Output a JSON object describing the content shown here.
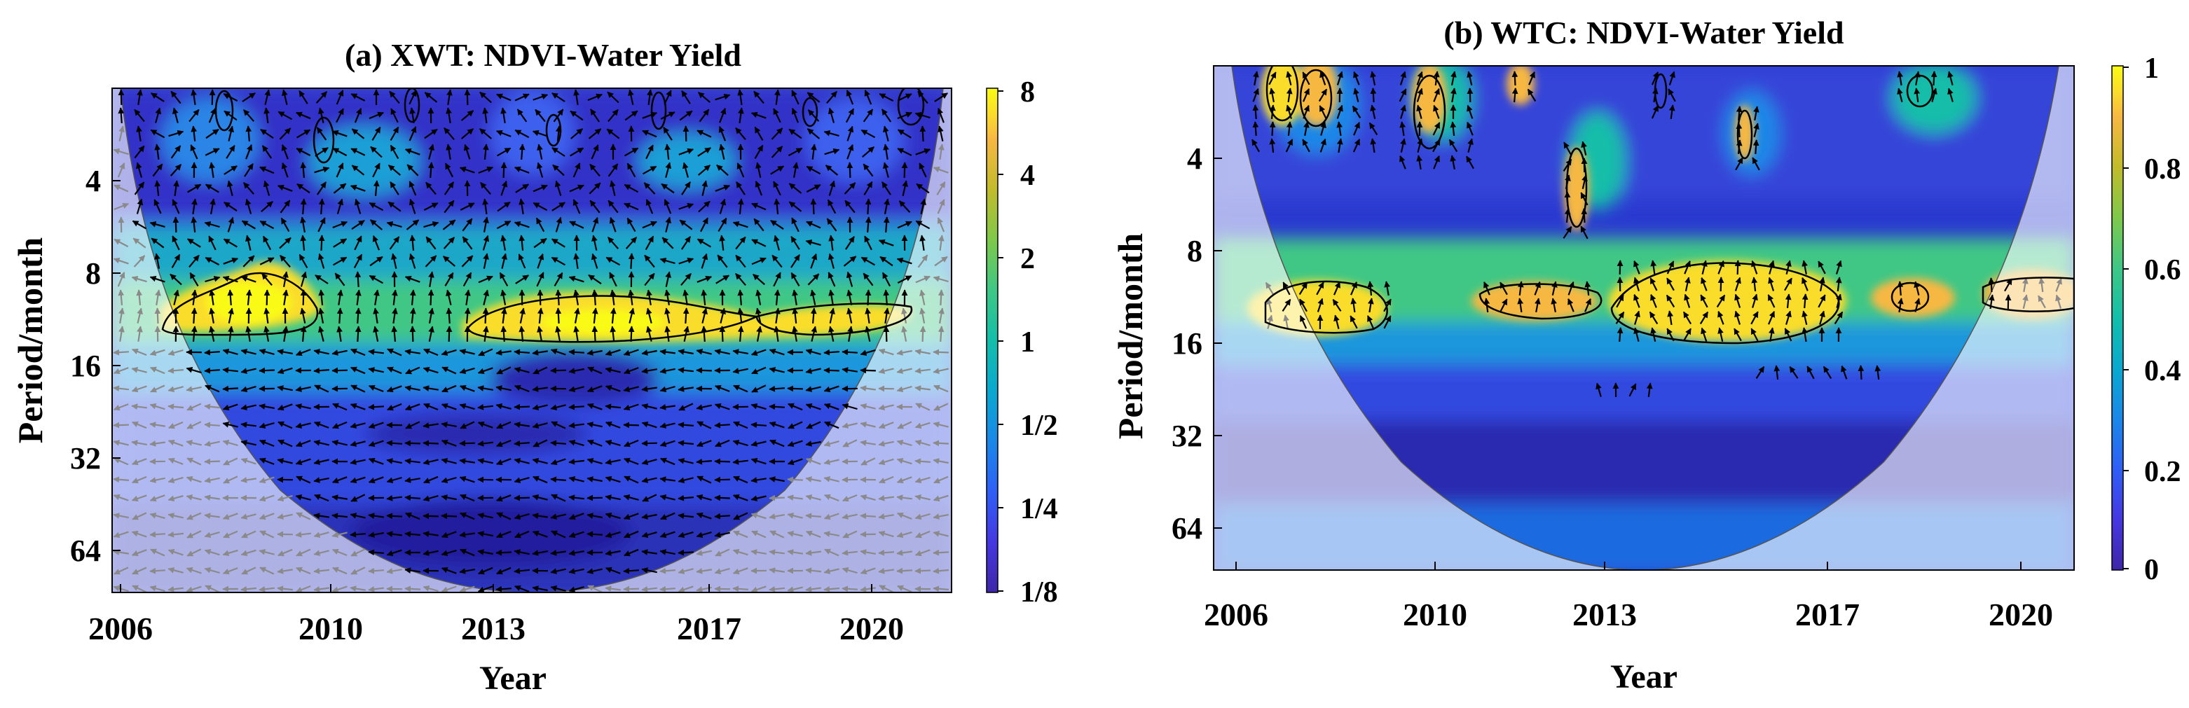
{
  "chart_data": [
    {
      "type": "heatmap",
      "title": "(a) XWT: NDVI-Water Yield",
      "xlabel": "Year",
      "ylabel": "Period/month",
      "x_ticks": [
        "2006",
        "2010",
        "2013",
        "2017",
        "2020"
      ],
      "x_tick_values": [
        2006,
        2010,
        2013,
        2017,
        2020
      ],
      "xlim": [
        2006.0,
        2020.6
      ],
      "y_ticks": [
        "4",
        "8",
        "16",
        "32",
        "64"
      ],
      "y_tick_values": [
        4,
        8,
        16,
        32,
        64
      ],
      "ylim": [
        2,
        90
      ],
      "y_scale": "log2",
      "colorbar_ticks": [
        "8",
        "4",
        "2",
        "1",
        "1/2",
        "1/4",
        "1/8"
      ],
      "colorbar_tick_values": [
        8,
        4,
        2,
        1,
        0.5,
        0.25,
        0.125
      ],
      "colorbar_scale": "log2",
      "colormap": [
        "#3e26a8",
        "#4538e0",
        "#2f5ff5",
        "#1a88e8",
        "#0aa8cf",
        "#13bea9",
        "#3fc785",
        "#7fc84a",
        "#c2bb2c",
        "#f7b843",
        "#fadd2b",
        "#f9fb15"
      ],
      "significant_regions": [
        {
          "x": [
            2006.9,
            2009.0
          ],
          "period": [
            9,
            14
          ]
        },
        {
          "x": [
            2012.0,
            2017.8
          ],
          "period": [
            10,
            14
          ]
        },
        {
          "x": [
            2017.8,
            2020.2
          ],
          "period": [
            10,
            13
          ]
        }
      ],
      "coi_shaded": true
    },
    {
      "type": "heatmap",
      "title": "(b) WTC: NDVI-Water Yield",
      "xlabel": "Year",
      "ylabel": "Period/month",
      "x_ticks": [
        "2006",
        "2010",
        "2013",
        "2017",
        "2020"
      ],
      "x_tick_values": [
        2006,
        2010,
        2013,
        2017,
        2020
      ],
      "xlim": [
        2006.0,
        2020.6
      ],
      "y_ticks": [
        "4",
        "8",
        "16",
        "32",
        "64"
      ],
      "y_tick_values": [
        4,
        8,
        16,
        32,
        64
      ],
      "ylim": [
        2,
        90
      ],
      "y_scale": "log2",
      "colorbar_ticks": [
        "1",
        "0.8",
        "0.6",
        "0.4",
        "0.2",
        "0"
      ],
      "colorbar_tick_values": [
        1,
        0.8,
        0.6,
        0.4,
        0.2,
        0
      ],
      "colormap": [
        "#3e26a8",
        "#4538e0",
        "#2f5ff5",
        "#1a88e8",
        "#0aa8cf",
        "#13bea9",
        "#3fc785",
        "#7fc84a",
        "#c2bb2c",
        "#f7b843",
        "#fadd2b",
        "#f9fb15"
      ],
      "significant_regions": [
        {
          "x": [
            2006.8,
            2008.8
          ],
          "period": [
            9,
            14
          ]
        },
        {
          "x": [
            2010.6,
            2012.6
          ],
          "period": [
            10,
            13
          ]
        },
        {
          "x": [
            2013.0,
            2016.8
          ],
          "period": [
            9,
            15
          ]
        },
        {
          "x": [
            2017.6,
            2018.8
          ],
          "period": [
            10,
            12
          ]
        },
        {
          "x": [
            2019.3,
            2020.6
          ],
          "period": [
            9,
            12
          ]
        },
        {
          "x": [
            2007.2,
            2008.0
          ],
          "period": [
            2,
            3
          ]
        },
        {
          "x": [
            2012.2,
            2012.6
          ],
          "period": [
            3.5,
            6
          ]
        },
        {
          "x": [
            2014.8,
            2015.0
          ],
          "period": [
            2.8,
            4
          ]
        }
      ],
      "coi_shaded": true
    }
  ]
}
